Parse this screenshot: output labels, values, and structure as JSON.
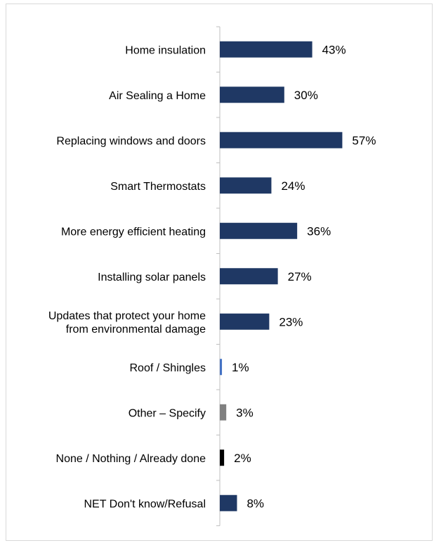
{
  "chart_data": {
    "type": "bar",
    "orientation": "horizontal",
    "categories": [
      "Home insulation",
      "Air Sealing a Home",
      "Replacing windows and doors",
      "Smart Thermostats",
      "More energy efficient heating",
      "Installing solar panels",
      "Updates that protect your home from environmental damage",
      "Roof / Shingles",
      "Other – Specify",
      "None / Nothing / Already done",
      "NET Don't know/Refusal"
    ],
    "category_lines": [
      [
        "Home insulation"
      ],
      [
        "Air Sealing a Home"
      ],
      [
        "Replacing windows and doors"
      ],
      [
        "Smart Thermostats"
      ],
      [
        "More energy efficient heating"
      ],
      [
        "Installing solar panels"
      ],
      [
        "Updates that protect your home",
        "from environmental damage"
      ],
      [
        "Roof / Shingles"
      ],
      [
        "Other – Specify"
      ],
      [
        "None / Nothing / Already done"
      ],
      [
        "NET Don't know/Refusal"
      ]
    ],
    "values": [
      43,
      30,
      57,
      24,
      36,
      27,
      23,
      1,
      3,
      2,
      8
    ],
    "value_labels": [
      "43%",
      "30%",
      "57%",
      "24%",
      "36%",
      "27%",
      "23%",
      "1%",
      "3%",
      "2%",
      "8%"
    ],
    "bar_colors": [
      "#1f3864",
      "#1f3864",
      "#1f3864",
      "#1f3864",
      "#1f3864",
      "#1f3864",
      "#1f3864",
      "#4472c4",
      "#808080",
      "#000000",
      "#1f3864"
    ],
    "title": "",
    "xlabel": "",
    "ylabel": "",
    "xlim": [
      0,
      100
    ],
    "grid": false,
    "legend": "none"
  }
}
